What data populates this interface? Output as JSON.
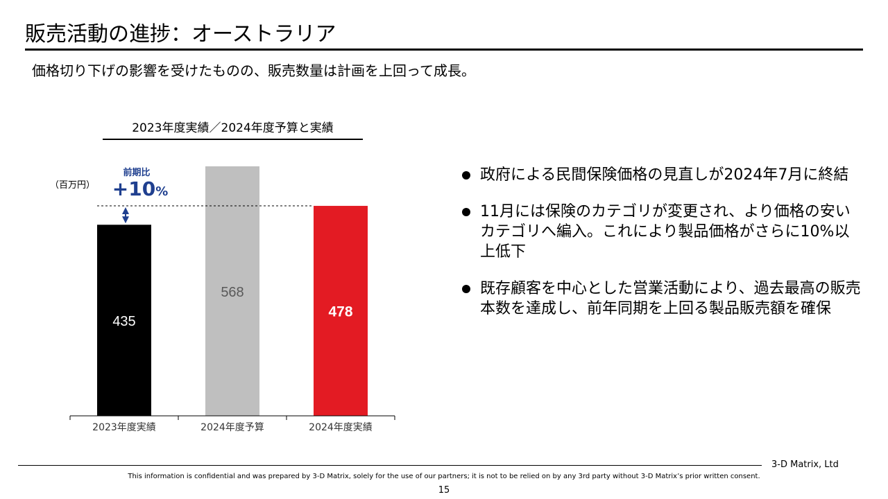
{
  "header": {
    "title": "販売活動の進捗：オーストラリア",
    "subtitle": "価格切り下げの影響を受けたものの、販売数量は計画を上回って成長。"
  },
  "chart_data": {
    "type": "bar",
    "title": "2023年度実績／2024年度予算と実績",
    "unit": "（百万円）",
    "categories": [
      "2023年度実績",
      "2024年度予算",
      "2024年度実績"
    ],
    "values": [
      435,
      568,
      478
    ],
    "value_labels": [
      "435",
      "568",
      "478"
    ],
    "colors": [
      "#000000",
      "#bfbfbf",
      "#e31b23"
    ],
    "label_colors": [
      "#ffffff",
      "#595959",
      "#ffffff"
    ],
    "ylim": [
      0,
      568
    ],
    "growth_annotation": {
      "label": "前期比",
      "value": "+10",
      "unit": "%",
      "color": "#1f3f8f"
    }
  },
  "bullets": [
    "政府による民間保険価格の見直しが2024年7月に終結",
    "11月には保険のカテゴリが変更され、より価格の安いカテゴリへ編入。これにより製品価格がさらに10%以上低下",
    "既存顧客を中心とした営業活動により、過去最高の販売本数を達成し、前年同期を上回る製品販売額を確保"
  ],
  "footer": {
    "company": "3-D Matrix, Ltd",
    "disclaimer": "This information is confidential and was prepared by 3-D Matrix, solely for the use of our partners; it is not to be relied on by any 3rd party without 3-D Matrix’s prior written consent.",
    "page_number": "15"
  }
}
